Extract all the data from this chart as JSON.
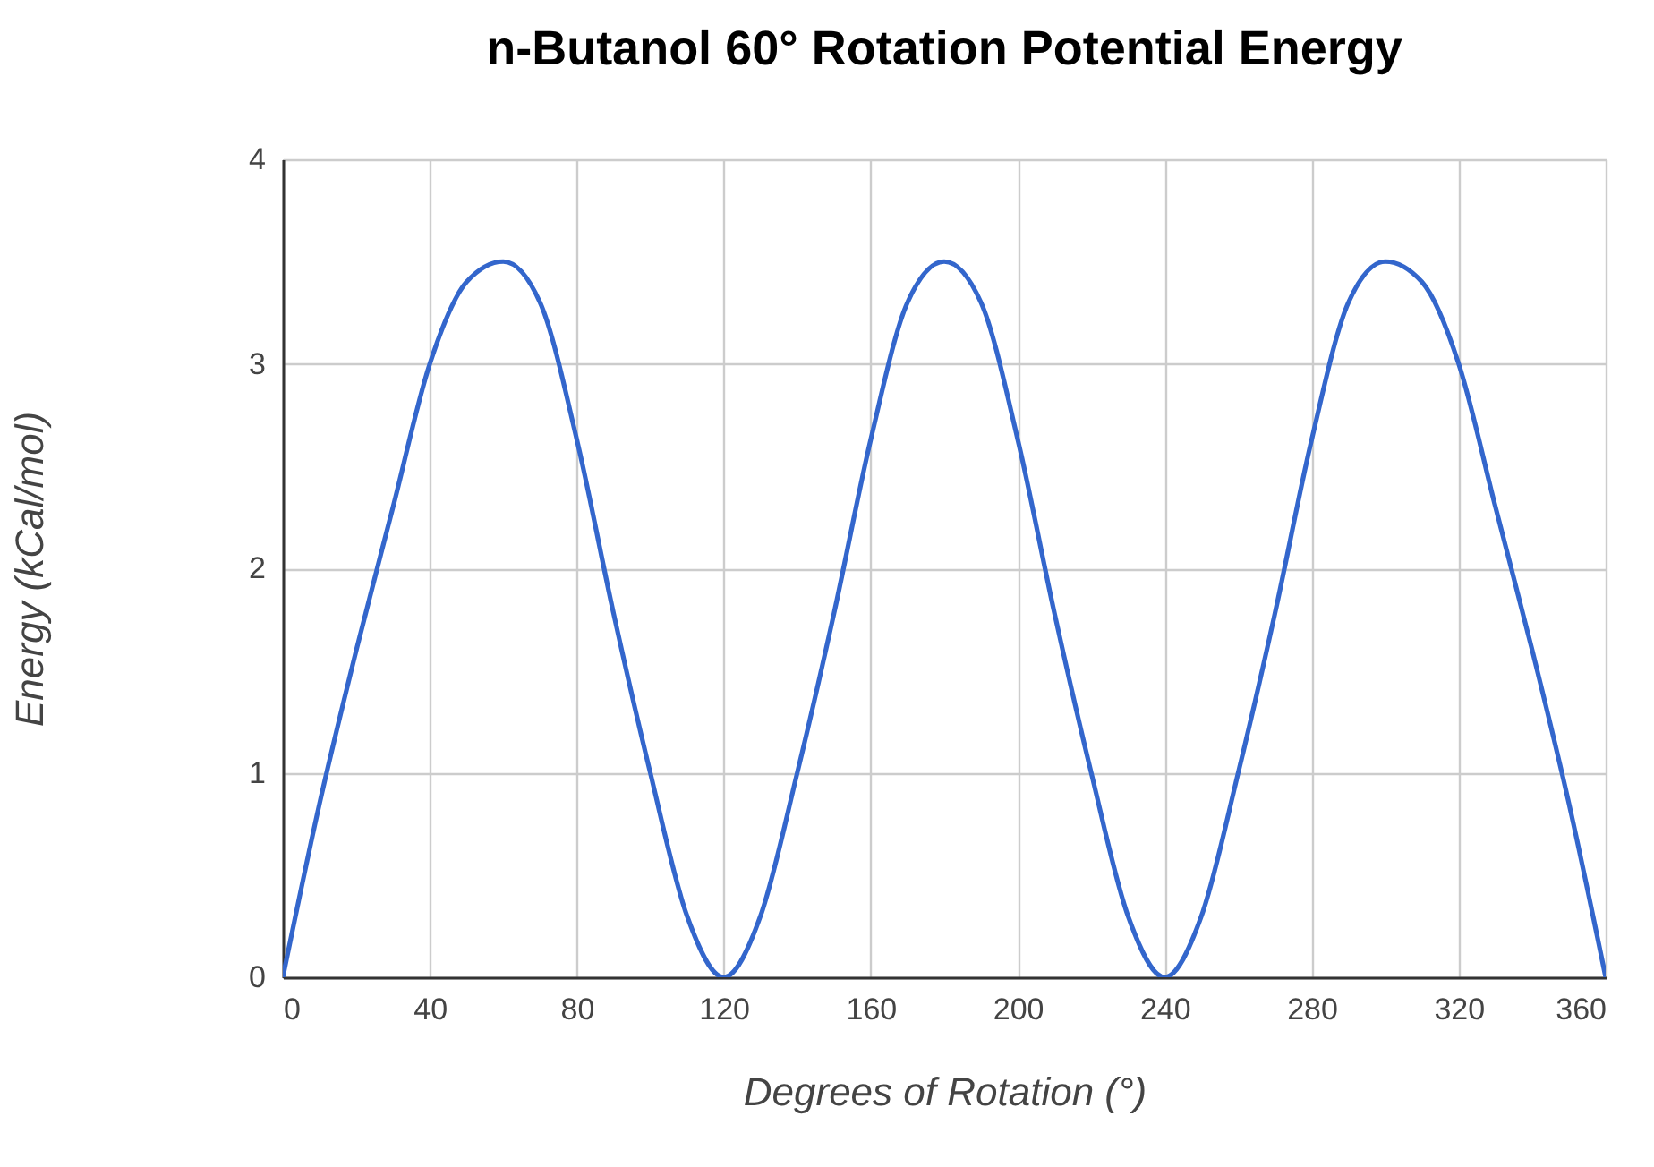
{
  "chart_data": {
    "type": "line",
    "title": "n-Butanol 60° Rotation Potential Energy",
    "xlabel": "Degrees of Rotation (°)",
    "ylabel": "Energy (kCal/mol)",
    "x": [
      0,
      10,
      20,
      30,
      40,
      50,
      60,
      70,
      80,
      90,
      100,
      110,
      120,
      130,
      140,
      150,
      160,
      170,
      180,
      190,
      200,
      210,
      220,
      230,
      240,
      250,
      260,
      270,
      280,
      290,
      300,
      310,
      320,
      330,
      340,
      350,
      360
    ],
    "series": [
      {
        "color": "#3366cc",
        "values": [
          0,
          0.85,
          1.6,
          2.3,
          3.0,
          3.4,
          3.5,
          3.3,
          2.63,
          1.78,
          1.0,
          0.3,
          0,
          0.3,
          1.0,
          1.78,
          2.63,
          3.3,
          3.5,
          3.3,
          2.63,
          1.78,
          1.0,
          0.3,
          0,
          0.3,
          1.0,
          1.78,
          2.63,
          3.3,
          3.5,
          3.4,
          3.0,
          2.3,
          1.6,
          0.85,
          0
        ]
      }
    ],
    "xlim": [
      0,
      360
    ],
    "xticks": [
      0,
      40,
      80,
      120,
      160,
      200,
      240,
      280,
      320,
      360
    ],
    "ylim": [
      0,
      4
    ],
    "yticks": [
      0,
      1,
      2,
      3,
      4
    ],
    "grid": true,
    "line_style": "solid",
    "marker": "none"
  }
}
